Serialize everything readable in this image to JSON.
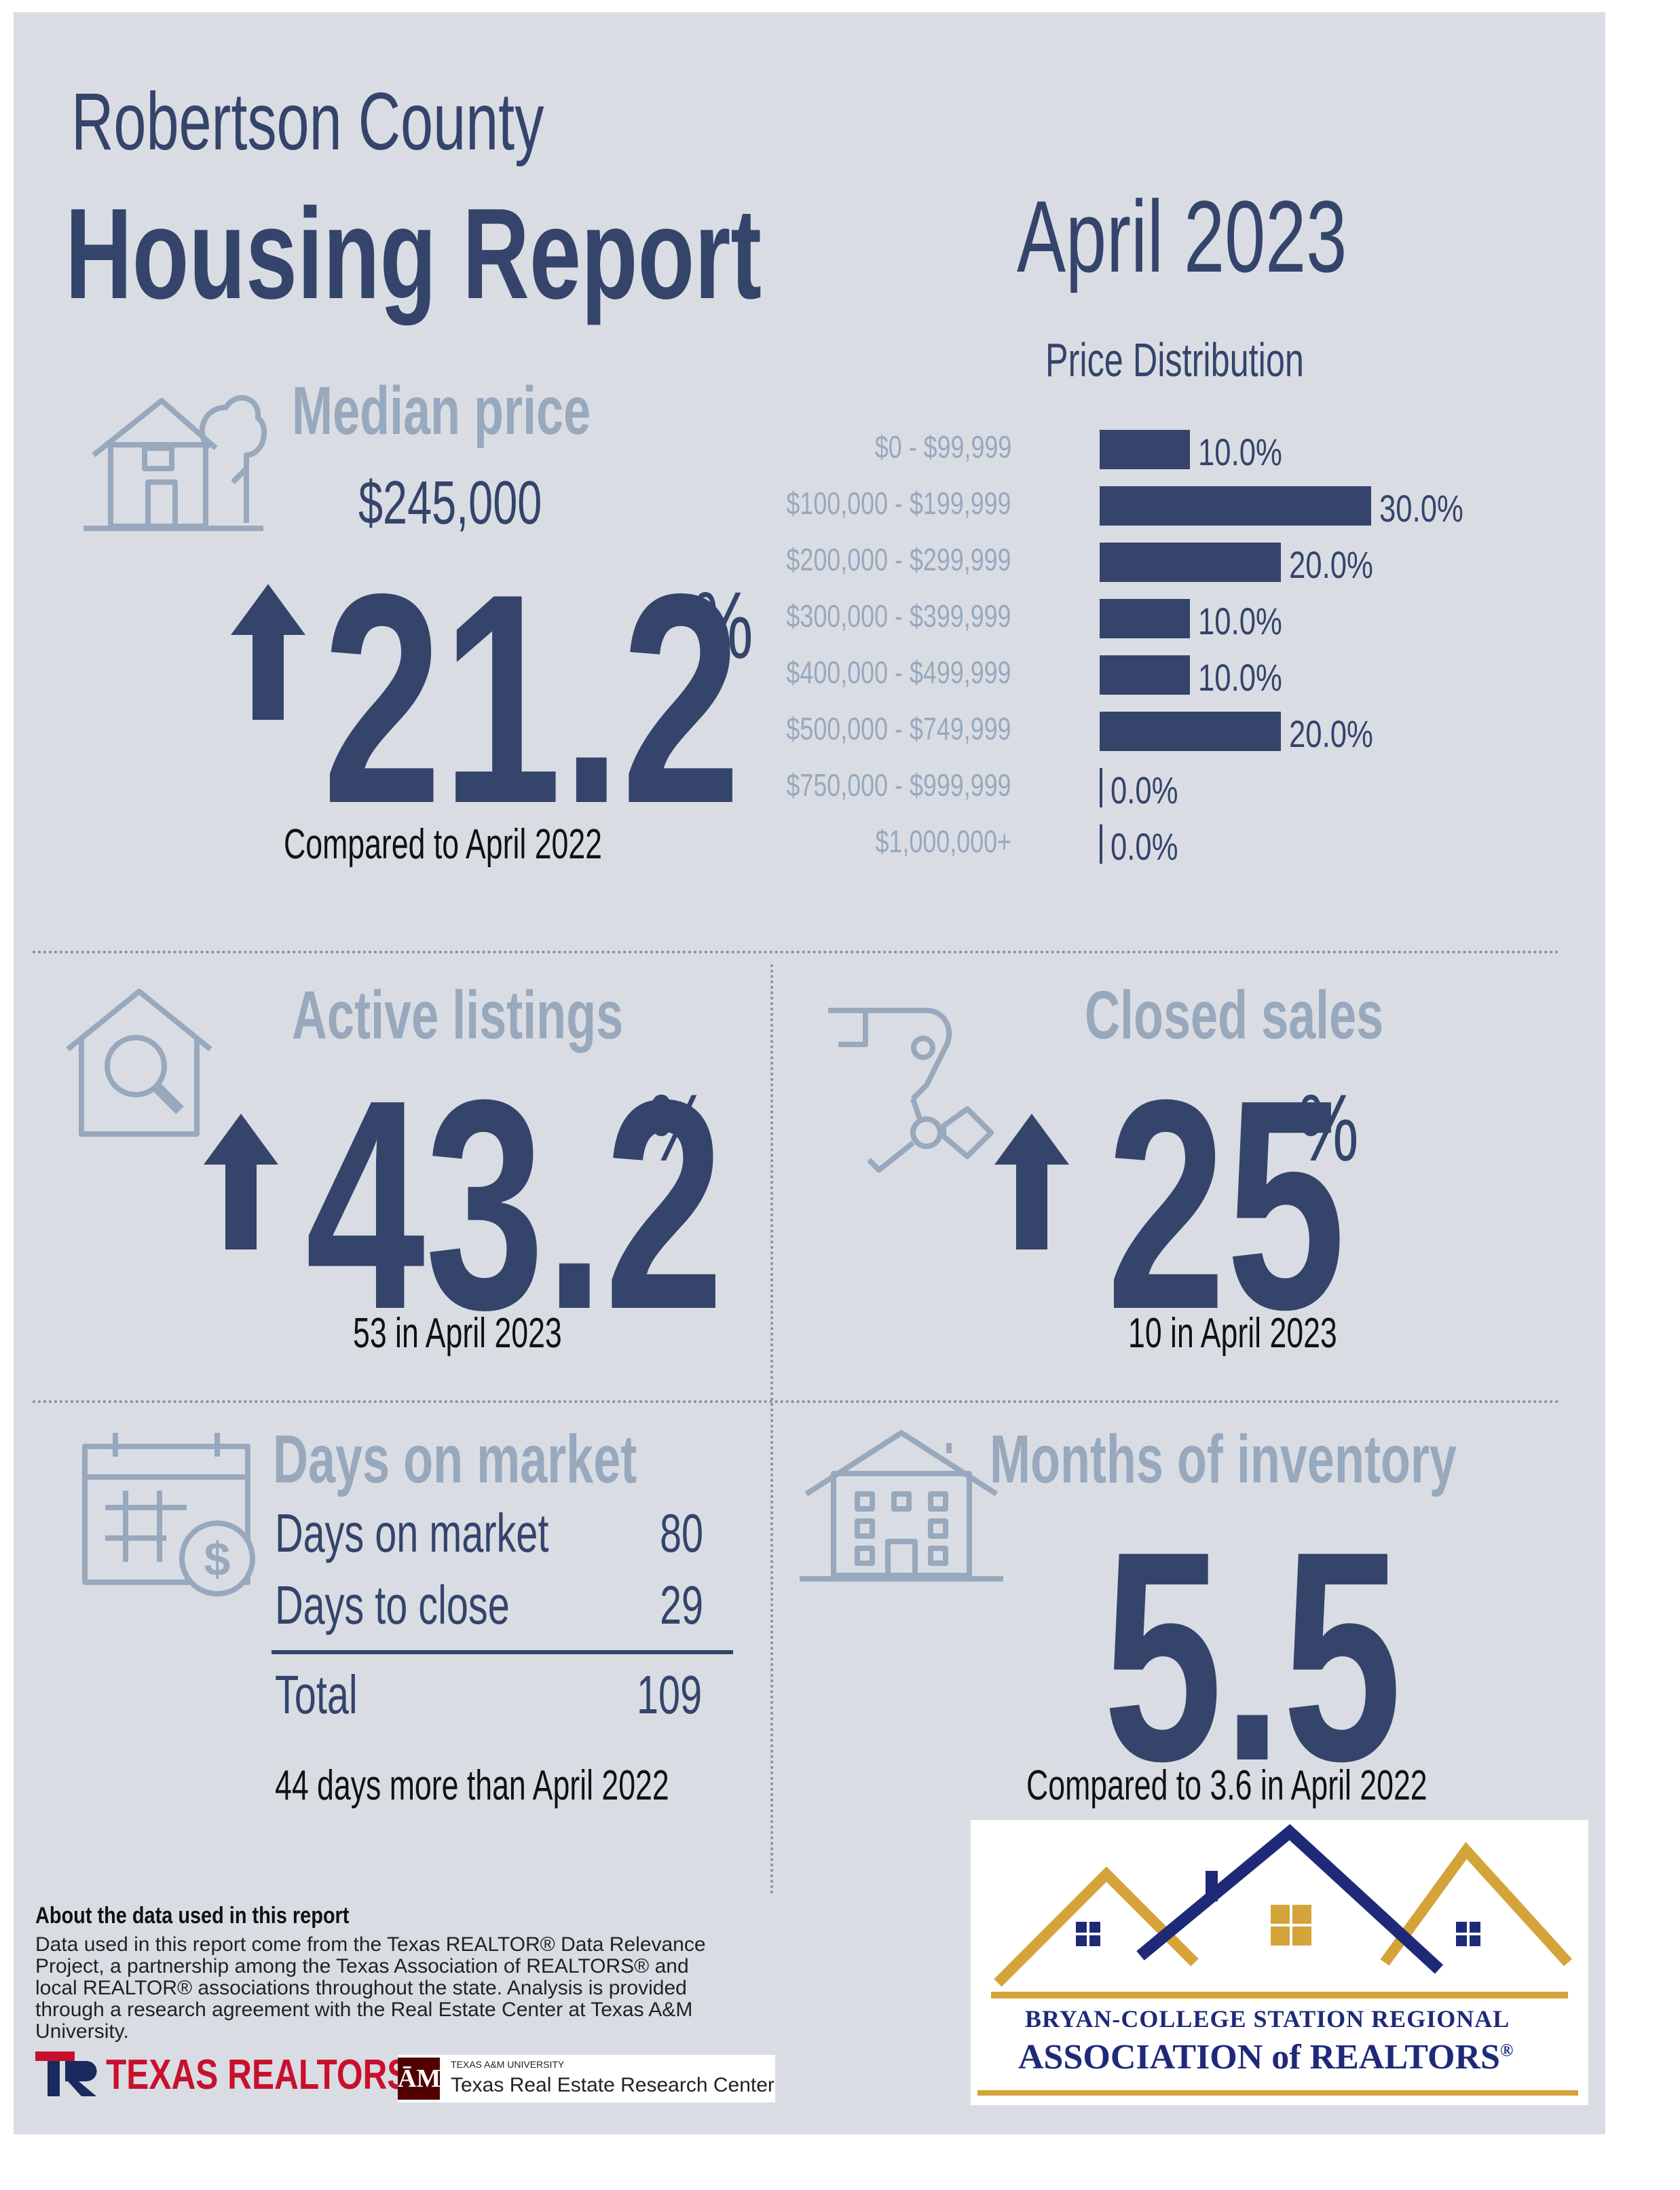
{
  "header": {
    "county": "Robertson County",
    "report_title": "Housing Report",
    "period": "April 2023"
  },
  "price_distribution": {
    "title": "Price Distribution",
    "rows": [
      {
        "label": "$0 - $99,999",
        "value": 10.0,
        "display": "10.0%"
      },
      {
        "label": "$100,000 - $199,999",
        "value": 30.0,
        "display": "30.0%"
      },
      {
        "label": "$200,000 - $299,999",
        "value": 20.0,
        "display": "20.0%"
      },
      {
        "label": "$300,000 - $399,999",
        "value": 10.0,
        "display": "10.0%"
      },
      {
        "label": "$400,000 - $499,999",
        "value": 10.0,
        "display": "10.0%"
      },
      {
        "label": "$500,000 - $749,999",
        "value": 20.0,
        "display": "20.0%"
      },
      {
        "label": "$750,000 - $999,999",
        "value": 0.0,
        "display": "0.0%"
      },
      {
        "label": "$1,000,000+",
        "value": 0.0,
        "display": "0.0%"
      }
    ]
  },
  "median_price": {
    "title": "Median price",
    "value": "$245,000",
    "change": "21.2",
    "unit": "%",
    "caption": "Compared to April 2022"
  },
  "active_listings": {
    "title": "Active listings",
    "change": "43.2",
    "unit": "%",
    "caption": "53 in April 2023"
  },
  "closed_sales": {
    "title": "Closed sales",
    "change": "25",
    "unit": "%",
    "caption": "10 in April 2023"
  },
  "days_on_market": {
    "title": "Days on market",
    "rows": [
      {
        "label": "Days on market",
        "value": "80"
      },
      {
        "label": "Days to close",
        "value": "29"
      }
    ],
    "total_label": "Total",
    "total_value": "109",
    "caption": "44 days more than April 2022"
  },
  "months_inventory": {
    "title": "Months of inventory",
    "value": "5.5",
    "caption": "Compared to 3.6 in April 2022"
  },
  "about": {
    "title": "About the data used in this report",
    "text": "Data used in this report come from the Texas REALTOR® Data Relevance Project, a partnership among the Texas Association of REALTORS® and local REALTOR® associations throughout the state. Analysis is provided through a research agreement with the Real Estate Center at Texas A&M University."
  },
  "logos": {
    "texas_realtors": "TEXAS REALTORS",
    "tamu_small": "TEXAS A&M UNIVERSITY",
    "tamu_center": "Texas Real Estate Research Center",
    "assoc_line1": "BRYAN-COLLEGE STATION REGIONAL",
    "assoc_line2": "ASSOCIATION of REALTORS",
    "assoc_mark": "®"
  },
  "colors": {
    "navy": "#34446b",
    "light": "#98a8bd",
    "background": "#d9dde3",
    "gold": "#d4a43a",
    "logo_blue": "#1e2a78"
  }
}
